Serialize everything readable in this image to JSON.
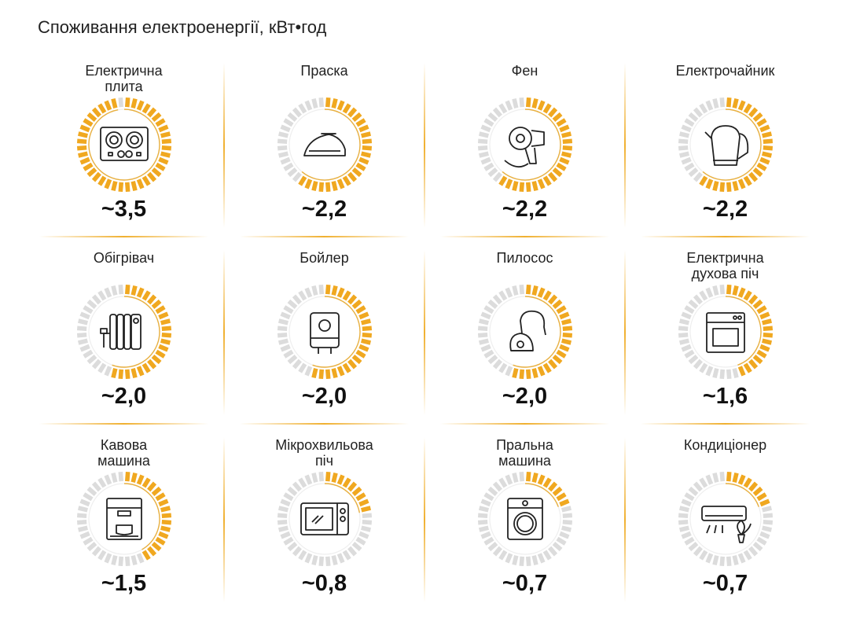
{
  "title": "Споживання електроенергії, кВт•год",
  "colors": {
    "filled": "#f0a820",
    "empty": "#dcdcdc",
    "ring": "#e8b040"
  },
  "chart_data": {
    "type": "radial-gauge",
    "title": "Споживання електроенергії, кВт•год",
    "unit": "кВт•год",
    "max": 3.6,
    "items": [
      {
        "label": "Електрична плита",
        "value": 3.5,
        "display": "~3,5",
        "icon": "stove-icon"
      },
      {
        "label": "Праска",
        "value": 2.2,
        "display": "~2,2",
        "icon": "iron-icon"
      },
      {
        "label": "Фен",
        "value": 2.2,
        "display": "~2,2",
        "icon": "hair-dryer-icon"
      },
      {
        "label": "Електрочайник",
        "value": 2.2,
        "display": "~2,2",
        "icon": "kettle-icon"
      },
      {
        "label": "Обігрівач",
        "value": 2.0,
        "display": "~2,0",
        "icon": "heater-icon"
      },
      {
        "label": "Бойлер",
        "value": 2.0,
        "display": "~2,0",
        "icon": "boiler-icon"
      },
      {
        "label": "Пилосос",
        "value": 2.0,
        "display": "~2,0",
        "icon": "vacuum-icon"
      },
      {
        "label": "Електрична духова піч",
        "value": 1.6,
        "display": "~1,6",
        "icon": "oven-icon"
      },
      {
        "label": "Кавова машина",
        "value": 1.5,
        "display": "~1,5",
        "icon": "coffee-machine-icon"
      },
      {
        "label": "Мікрохвильова піч",
        "value": 0.8,
        "display": "~0,8",
        "icon": "microwave-icon"
      },
      {
        "label": "Пральна машина",
        "value": 0.7,
        "display": "~0,7",
        "icon": "washing-machine-icon"
      },
      {
        "label": "Кондиціонер",
        "value": 0.7,
        "display": "~0,7",
        "icon": "air-conditioner-icon"
      }
    ]
  }
}
